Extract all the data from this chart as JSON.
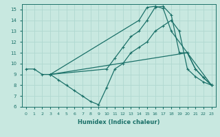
{
  "xlabel": "Humidex (Indice chaleur)",
  "xlim": [
    -0.5,
    23.5
  ],
  "ylim": [
    6,
    15.5
  ],
  "xticks": [
    0,
    1,
    2,
    3,
    4,
    5,
    6,
    7,
    8,
    9,
    10,
    11,
    12,
    13,
    14,
    15,
    16,
    17,
    18,
    19,
    20,
    21,
    22,
    23
  ],
  "yticks": [
    6,
    7,
    8,
    9,
    10,
    11,
    12,
    13,
    14,
    15
  ],
  "bg_color": "#c8e8e0",
  "grid_color": "#b0d8d0",
  "line_color": "#1a7068",
  "lines": [
    {
      "x": [
        0,
        1,
        2,
        3,
        14,
        15,
        16,
        17,
        18,
        23
      ],
      "y": [
        9.5,
        9.5,
        9.0,
        9.0,
        14.0,
        15.2,
        15.3,
        15.1,
        13.0,
        8.0
      ]
    },
    {
      "comment": "second line: from 3,9 straight to 20,11 then 21,9.5 22,8.7 23,8",
      "x": [
        3,
        20,
        21,
        22,
        23
      ],
      "y": [
        9.0,
        11.0,
        9.5,
        8.7,
        8.0
      ]
    },
    {
      "comment": "third line: from 3,9 via 10,9.5 11,10.5 12,11.5 13,12.5 to 14,13 then 17,15 18,14.5 19,11 20,11 21,9.5 22,8.7 23,8",
      "x": [
        3,
        10,
        11,
        12,
        13,
        14,
        15,
        16,
        17,
        18,
        19,
        20,
        21,
        22,
        23
      ],
      "y": [
        9.0,
        9.5,
        10.5,
        11.5,
        12.5,
        13.0,
        14.0,
        15.2,
        15.3,
        14.5,
        11.0,
        11.0,
        9.5,
        8.7,
        8.0
      ]
    },
    {
      "comment": "going down line: from 3,9 down to 4,8.5 5,8 6,7.5 7,7 8,6.5 9,6.2 then up to 10,7.8 11,9.5 eventually 23,8",
      "x": [
        3,
        4,
        5,
        6,
        7,
        8,
        9,
        10,
        11,
        12,
        13,
        14,
        15,
        16,
        17,
        18,
        19,
        20,
        21,
        22,
        23
      ],
      "y": [
        9.0,
        8.5,
        8.0,
        7.5,
        7.0,
        6.5,
        6.2,
        7.8,
        9.5,
        10.0,
        11.0,
        11.5,
        12.0,
        13.0,
        13.5,
        14.0,
        13.0,
        9.5,
        8.8,
        8.3,
        8.0
      ]
    }
  ]
}
